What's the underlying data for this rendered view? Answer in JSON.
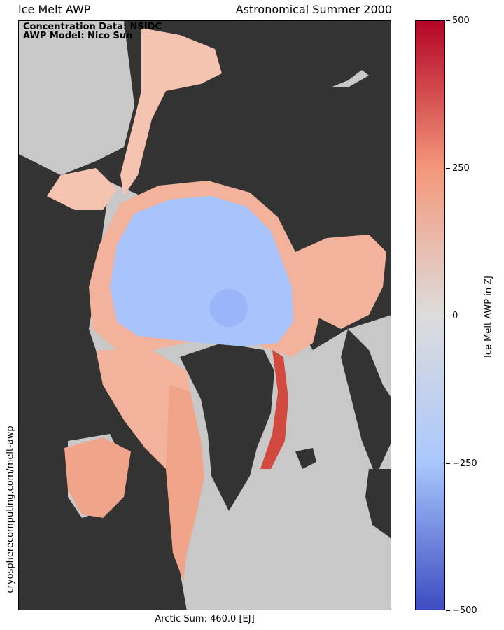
{
  "title_left": "Ice Melt AWP",
  "title_right": "Astronomical Summer 2000",
  "annotations": [
    "Concentration Data: NSIDC",
    "AWP Model: Nico Sun"
  ],
  "bottom_label": "Arctic Sum: 460.0 [EJ]",
  "side_label": "cryospherecomputing.com/melt-awp",
  "colorbar": {
    "label": "Ice Melt AWP in ZJ",
    "ticks": [
      "500",
      "250",
      "0",
      "−250",
      "−500"
    ],
    "range": [
      -500,
      500
    ],
    "colors": {
      "max": "#b40426",
      "high": "#f4987a",
      "mid": "#dddcdc",
      "low": "#aac7fd",
      "min": "#3b4cc0"
    }
  },
  "map_colors": {
    "land": "#333333",
    "ocean": "#c8c8c8",
    "ice_center": "#a9c4fc",
    "ice_pole": "#9bb6f8",
    "edge_warm": "#f2b29b",
    "edge_hot": "#d1493f"
  }
}
